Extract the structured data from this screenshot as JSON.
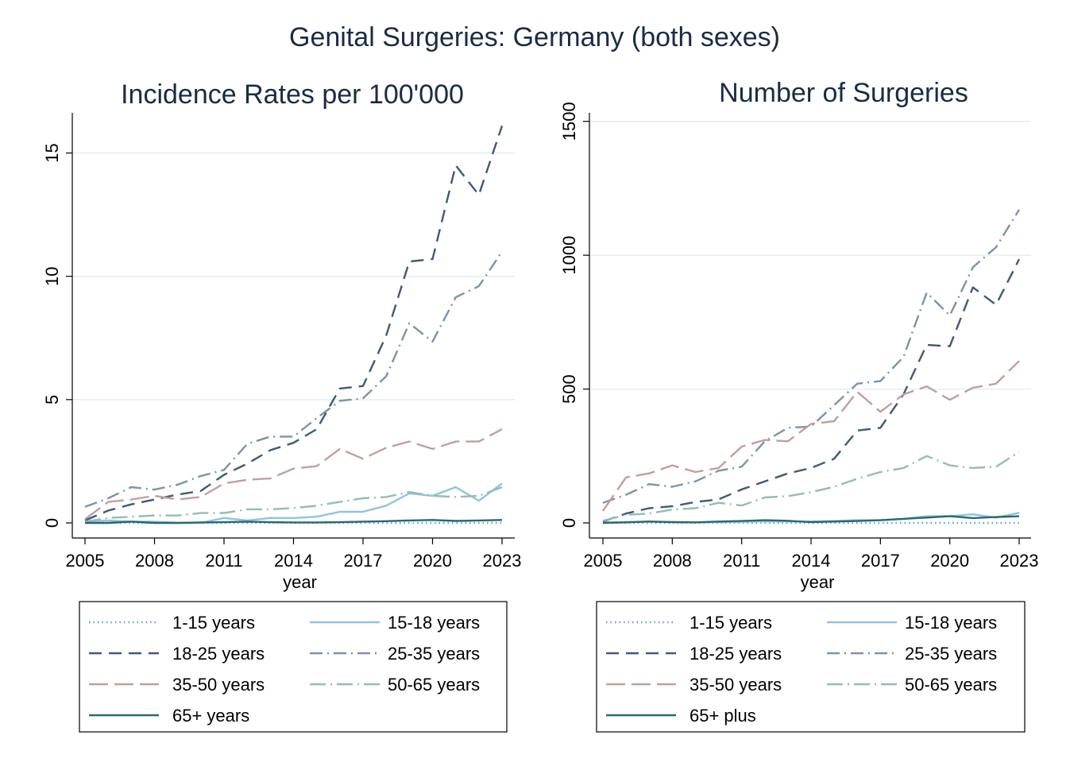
{
  "figure_title": "Genital Surgeries: Germany (both sexes)",
  "styles": {
    "1-15": {
      "color": "#5fa6d0",
      "dash": "1.5 4"
    },
    "15-18": {
      "color": "#8fc4e0",
      "dash": ""
    },
    "18-25": {
      "color": "#3e5a78",
      "dash": "16 9"
    },
    "25-35": {
      "color": "#7a94ab",
      "dash": "16 6 2 6"
    },
    "35-50": {
      "color": "#c39e9e",
      "dash": "24 8"
    },
    "50-65": {
      "color": "#94bcb4",
      "dash": "20 6 2 6"
    },
    "65+": {
      "color": "#2a6870",
      "dash": ""
    }
  },
  "chart_data": [
    {
      "type": "line",
      "title": "Incidence Rates per 100'000",
      "xlabel": "year",
      "ylabel": "",
      "xlim": [
        2005,
        2023
      ],
      "ylim": [
        0,
        16.5
      ],
      "xticks": [
        2005,
        2008,
        2011,
        2014,
        2017,
        2020,
        2023
      ],
      "yticks": [
        0,
        5,
        10,
        15
      ],
      "grid": true,
      "legend": "below",
      "x": [
        2005,
        2006,
        2007,
        2008,
        2009,
        2010,
        2011,
        2012,
        2013,
        2014,
        2015,
        2016,
        2017,
        2018,
        2019,
        2020,
        2021,
        2022,
        2023
      ],
      "series": [
        {
          "name": "1-15 years",
          "style": "1-15",
          "values": [
            0,
            0,
            0,
            0,
            0,
            0,
            0,
            0,
            0,
            0,
            0,
            0,
            0,
            0,
            0,
            0,
            0,
            0,
            0
          ]
        },
        {
          "name": "15-18 years",
          "style": "15-18",
          "values": [
            0.05,
            0.1,
            0.05,
            0.05,
            0,
            0,
            0.2,
            0.1,
            0.2,
            0.2,
            0.25,
            0.45,
            0.45,
            0.7,
            1.2,
            1.1,
            1.45,
            0.9,
            1.6
          ]
        },
        {
          "name": "18-25 years",
          "style": "18-25",
          "values": [
            0.1,
            0.5,
            0.75,
            0.95,
            1.15,
            1.3,
            1.95,
            2.4,
            2.95,
            3.25,
            3.8,
            5.45,
            5.55,
            7.6,
            10.6,
            10.7,
            14.5,
            13.3,
            16.1
          ]
        },
        {
          "name": "25-35 years",
          "style": "25-35",
          "values": [
            0.65,
            1.0,
            1.45,
            1.35,
            1.55,
            1.9,
            2.15,
            3.2,
            3.5,
            3.5,
            4.25,
            4.95,
            5.05,
            5.95,
            8.1,
            7.35,
            9.15,
            9.6,
            11.0
          ]
        },
        {
          "name": "35-50 years",
          "style": "35-50",
          "values": [
            0.15,
            0.85,
            0.95,
            1.1,
            0.95,
            1.05,
            1.6,
            1.75,
            1.8,
            2.2,
            2.3,
            3.0,
            2.6,
            3.05,
            3.3,
            3.0,
            3.3,
            3.3,
            3.8
          ]
        },
        {
          "name": "50-65 years",
          "style": "50-65",
          "values": [
            0.05,
            0.2,
            0.25,
            0.3,
            0.3,
            0.4,
            0.4,
            0.55,
            0.55,
            0.6,
            0.7,
            0.85,
            1.0,
            1.05,
            1.25,
            1.1,
            1.05,
            1.1,
            1.45
          ]
        },
        {
          "name": "65+ years",
          "style": "65+",
          "values": [
            0,
            0,
            0.05,
            0,
            0,
            0.02,
            0.03,
            0.05,
            0.03,
            0.02,
            0.02,
            0.03,
            0.05,
            0.07,
            0.1,
            0.12,
            0.08,
            0.1,
            0.12
          ]
        }
      ]
    },
    {
      "type": "line",
      "title": "Number of Surgeries",
      "xlabel": "year",
      "ylabel": "",
      "xlim": [
        2005,
        2023
      ],
      "ylim": [
        0,
        1520
      ],
      "xticks": [
        2005,
        2008,
        2011,
        2014,
        2017,
        2020,
        2023
      ],
      "yticks": [
        0,
        500,
        1000,
        1500
      ],
      "grid": true,
      "legend": "below",
      "x": [
        2005,
        2006,
        2007,
        2008,
        2009,
        2010,
        2011,
        2012,
        2013,
        2014,
        2015,
        2016,
        2017,
        2018,
        2019,
        2020,
        2021,
        2022,
        2023
      ],
      "series": [
        {
          "name": "1-15 years",
          "style": "1-15",
          "values": [
            0,
            0,
            0,
            0,
            0,
            0,
            0,
            0,
            0,
            0,
            0,
            0,
            0,
            0,
            0,
            0,
            0,
            0,
            0
          ]
        },
        {
          "name": "15-18 years",
          "style": "15-18",
          "values": [
            2,
            3,
            5,
            3,
            2,
            3,
            4,
            6,
            5,
            5,
            7,
            10,
            10,
            15,
            25,
            25,
            32,
            20,
            38
          ]
        },
        {
          "name": "18-25 years",
          "style": "18-25",
          "values": [
            5,
            35,
            55,
            62,
            78,
            88,
            125,
            155,
            185,
            205,
            240,
            345,
            355,
            480,
            665,
            660,
            880,
            815,
            985
          ]
        },
        {
          "name": "25-35 years",
          "style": "25-35",
          "values": [
            75,
            105,
            145,
            135,
            155,
            195,
            210,
            305,
            355,
            360,
            440,
            520,
            530,
            620,
            860,
            775,
            955,
            1030,
            1170
          ]
        },
        {
          "name": "35-50 years",
          "style": "35-50",
          "values": [
            45,
            170,
            185,
            215,
            190,
            205,
            285,
            310,
            305,
            370,
            380,
            490,
            415,
            480,
            510,
            460,
            505,
            520,
            605
          ]
        },
        {
          "name": "50-65 years",
          "style": "50-65",
          "values": [
            8,
            30,
            35,
            50,
            55,
            75,
            65,
            95,
            100,
            115,
            135,
            165,
            190,
            205,
            250,
            215,
            205,
            210,
            265
          ]
        },
        {
          "name": "65+ plus",
          "style": "65+",
          "values": [
            0,
            2,
            5,
            3,
            2,
            5,
            7,
            10,
            8,
            3,
            5,
            7,
            10,
            15,
            20,
            25,
            18,
            22,
            25
          ]
        }
      ]
    }
  ]
}
